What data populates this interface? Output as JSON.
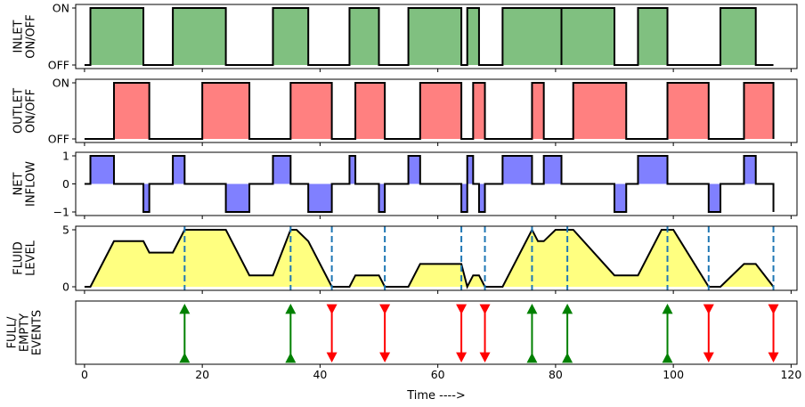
{
  "chart_data": [
    {
      "type": "area",
      "ylabel_lines": [
        "INLET",
        "ON/OFF"
      ],
      "ytick_labels": [
        "ON",
        "OFF"
      ],
      "ylim": [
        0,
        1
      ],
      "xlim": [
        -1.5,
        121
      ],
      "color": "#80c080",
      "intervals": [
        [
          1,
          10
        ],
        [
          15,
          24
        ],
        [
          32,
          38
        ],
        [
          45,
          50
        ],
        [
          55,
          64
        ],
        [
          65,
          67
        ],
        [
          71,
          81
        ],
        [
          81,
          90
        ],
        [
          94,
          99
        ],
        [
          108,
          114
        ]
      ]
    },
    {
      "type": "area",
      "ylabel_lines": [
        "OUTLET",
        "ON/OFF"
      ],
      "ytick_labels": [
        "ON",
        "OFF"
      ],
      "ylim": [
        0,
        1
      ],
      "xlim": [
        -1.5,
        121
      ],
      "color": "#ff8080",
      "intervals": [
        [
          5,
          11
        ],
        [
          20,
          28
        ],
        [
          35,
          42
        ],
        [
          46,
          51
        ],
        [
          57,
          64
        ],
        [
          66,
          68
        ],
        [
          76,
          78
        ],
        [
          83,
          92
        ],
        [
          99,
          106
        ],
        [
          112,
          117
        ]
      ]
    },
    {
      "type": "area",
      "ylabel_lines": [
        "NET",
        "INFLOW"
      ],
      "yticks": [
        1,
        0,
        -1
      ],
      "ylim": [
        -1,
        1
      ],
      "xlim": [
        -1.5,
        121
      ],
      "color": "#8080ff",
      "x": [
        0,
        1,
        5,
        10,
        11,
        15,
        17,
        20,
        24,
        28,
        32,
        35,
        38,
        42,
        45,
        46,
        50,
        51,
        55,
        57,
        64,
        65,
        66,
        67,
        68,
        71,
        76,
        78,
        81,
        83,
        90,
        92,
        94,
        99,
        106,
        108,
        112,
        114,
        117
      ],
      "y": [
        0,
        1,
        0,
        -1,
        0,
        1,
        0,
        0,
        -1,
        0,
        1,
        0,
        -1,
        0,
        1,
        0,
        -1,
        0,
        1,
        0,
        -1,
        1,
        0,
        -1,
        0,
        1,
        0,
        1,
        0,
        0,
        -1,
        0,
        1,
        0,
        -1,
        0,
        1,
        0,
        -1
      ]
    },
    {
      "type": "area",
      "ylabel_lines": [
        "FLUID",
        "LEVEL"
      ],
      "yticks": [
        5,
        0
      ],
      "ylim": [
        0,
        5
      ],
      "xlim": [
        -1.5,
        121
      ],
      "color": "#ffff80",
      "x": [
        0,
        1,
        5,
        10,
        11,
        15,
        17,
        20,
        24,
        28,
        32,
        35,
        36,
        38,
        42,
        45,
        46,
        50,
        51,
        55,
        57,
        64,
        65,
        66,
        67,
        68,
        71,
        76,
        77,
        78,
        80,
        82,
        83,
        90,
        92,
        94,
        98,
        100,
        106,
        108,
        112,
        114,
        117
      ],
      "y": [
        0,
        0,
        4,
        4,
        3,
        3,
        5,
        5,
        5,
        1,
        1,
        5,
        5,
        4,
        0,
        0,
        1,
        1,
        0,
        0,
        2,
        2,
        0,
        1,
        1,
        0,
        0,
        5,
        4,
        4,
        5,
        5,
        5,
        1,
        1,
        1,
        5,
        5,
        0,
        0,
        2,
        2,
        0
      ],
      "event_lines_x": [
        17,
        35,
        42,
        51,
        64,
        68,
        76,
        82,
        99,
        106,
        117
      ]
    },
    {
      "type": "scatter",
      "ylabel_lines": [
        "FULL/",
        "EMPTY",
        "EVENTS"
      ],
      "xlim": [
        -1.5,
        121
      ],
      "xticks": [
        0,
        20,
        40,
        60,
        80,
        100,
        120
      ],
      "xlabel": "Time ---->",
      "full_events": [
        17,
        35,
        76,
        82,
        99
      ],
      "empty_events": [
        42,
        51,
        64,
        68,
        106,
        117
      ],
      "full_color": "#008000",
      "empty_color": "#ff0000"
    }
  ]
}
